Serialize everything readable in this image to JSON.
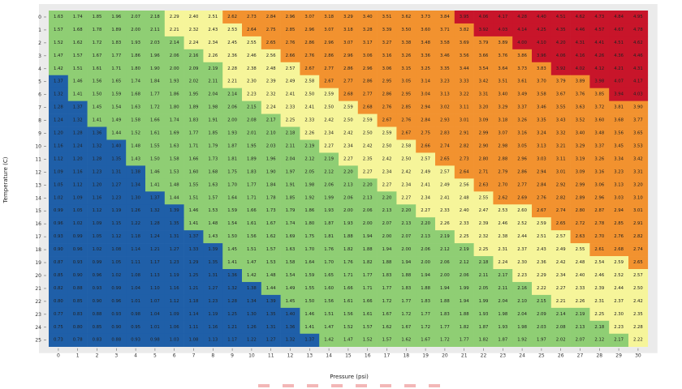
{
  "chart_data": {
    "type": "heatmap",
    "xlabel": "Pressure (psi)",
    "ylabel": "Temperature (C)",
    "x": [
      0,
      1,
      2,
      3,
      4,
      5,
      6,
      7,
      8,
      9,
      10,
      11,
      12,
      13,
      14,
      15,
      16,
      17,
      18,
      19,
      20,
      21,
      22,
      23,
      24,
      25,
      26,
      27,
      28,
      29,
      30
    ],
    "y": [
      0,
      1,
      2,
      3,
      4,
      5,
      6,
      7,
      8,
      9,
      10,
      11,
      12,
      13,
      14,
      15,
      16,
      17,
      18,
      19,
      20,
      21,
      22,
      23,
      24,
      25
    ],
    "grid": true,
    "color_bins": [
      {
        "max": 1.4,
        "color": "#1f5fa8"
      },
      {
        "max": 2.2,
        "color": "#8fce74"
      },
      {
        "max": 2.6,
        "color": "#f6f59a"
      },
      {
        "max": 3.9,
        "color": "#f2922f"
      },
      {
        "max": 99,
        "color": "#c8152a"
      }
    ],
    "legend_swatches": [
      "#f3b7b7",
      "#f3b7b7",
      "#f3b7b7",
      "#f3b7b7",
      "#f3b7b7",
      "#f3b7b7",
      "#f3b7b7",
      "#f3b7b7"
    ],
    "values": [
      [
        1.63,
        1.74,
        1.85,
        1.96,
        2.07,
        2.18,
        2.29,
        2.4,
        2.51,
        2.62,
        2.73,
        2.84,
        2.96,
        3.07,
        3.18,
        3.29,
        3.4,
        3.51,
        3.62,
        3.73,
        3.84,
        3.95,
        4.06,
        4.17,
        4.28,
        4.4,
        4.51,
        4.62,
        4.73,
        4.84,
        4.95
      ],
      [
        1.57,
        1.68,
        1.78,
        1.89,
        2.0,
        2.11,
        2.21,
        2.32,
        2.43,
        2.53,
        2.64,
        2.75,
        2.85,
        2.96,
        3.07,
        3.18,
        3.28,
        3.39,
        3.5,
        3.6,
        3.71,
        3.82,
        3.92,
        4.03,
        4.14,
        4.25,
        4.35,
        4.46,
        4.57,
        4.67,
        4.78
      ],
      [
        1.52,
        1.62,
        1.72,
        1.83,
        1.93,
        2.03,
        2.14,
        2.24,
        2.34,
        2.45,
        2.55,
        2.65,
        2.76,
        2.86,
        2.96,
        3.07,
        3.17,
        3.27,
        3.38,
        3.48,
        3.58,
        3.69,
        3.79,
        3.89,
        4.0,
        4.1,
        4.2,
        4.31,
        4.41,
        4.51,
        4.62
      ],
      [
        1.47,
        1.57,
        1.67,
        1.77,
        1.86,
        1.96,
        2.06,
        2.16,
        2.26,
        2.36,
        2.46,
        2.56,
        2.66,
        2.76,
        2.86,
        2.96,
        3.06,
        3.16,
        3.26,
        3.36,
        3.46,
        3.56,
        3.66,
        3.76,
        3.86,
        3.96,
        4.06,
        4.16,
        4.26,
        4.36,
        4.46
      ],
      [
        1.42,
        1.51,
        1.61,
        1.71,
        1.8,
        1.9,
        2.0,
        2.09,
        2.19,
        2.28,
        2.38,
        2.48,
        2.57,
        2.67,
        2.77,
        2.86,
        2.96,
        3.06,
        3.15,
        3.25,
        3.35,
        3.44,
        3.54,
        3.64,
        3.73,
        3.83,
        3.92,
        4.02,
        4.12,
        4.21,
        4.31
      ],
      [
        1.37,
        1.46,
        1.56,
        1.65,
        1.74,
        1.84,
        1.93,
        2.02,
        2.11,
        2.21,
        2.3,
        2.39,
        2.49,
        2.58,
        2.67,
        2.77,
        2.86,
        2.95,
        3.05,
        3.14,
        3.23,
        3.33,
        3.42,
        3.51,
        3.61,
        3.7,
        3.79,
        3.89,
        3.98,
        4.07,
        4.17
      ],
      [
        1.32,
        1.41,
        1.5,
        1.59,
        1.68,
        1.77,
        1.86,
        1.95,
        2.04,
        2.14,
        2.23,
        2.32,
        2.41,
        2.5,
        2.59,
        2.68,
        2.77,
        2.86,
        2.95,
        3.04,
        3.13,
        3.22,
        3.31,
        3.4,
        3.49,
        3.58,
        3.67,
        3.76,
        3.85,
        3.94,
        4.03
      ],
      [
        1.28,
        1.37,
        1.45,
        1.54,
        1.63,
        1.72,
        1.8,
        1.89,
        1.98,
        2.06,
        2.15,
        2.24,
        2.33,
        2.41,
        2.5,
        2.59,
        2.68,
        2.76,
        2.85,
        2.94,
        3.02,
        3.11,
        3.2,
        3.29,
        3.37,
        3.46,
        3.55,
        3.63,
        3.72,
        3.81,
        3.9
      ],
      [
        1.24,
        1.32,
        1.41,
        1.49,
        1.58,
        1.66,
        1.74,
        1.83,
        1.91,
        2.0,
        2.08,
        2.17,
        2.25,
        2.33,
        2.42,
        2.5,
        2.59,
        2.67,
        2.76,
        2.84,
        2.93,
        3.01,
        3.09,
        3.18,
        3.26,
        3.35,
        3.43,
        3.52,
        3.6,
        3.68,
        3.77
      ],
      [
        1.2,
        1.28,
        1.36,
        1.44,
        1.52,
        1.61,
        1.69,
        1.77,
        1.85,
        1.93,
        2.01,
        2.1,
        2.18,
        2.26,
        2.34,
        2.42,
        2.5,
        2.59,
        2.67,
        2.75,
        2.83,
        2.91,
        2.99,
        3.07,
        3.16,
        3.24,
        3.32,
        3.4,
        3.48,
        3.56,
        3.65
      ],
      [
        1.16,
        1.24,
        1.32,
        1.4,
        1.48,
        1.55,
        1.63,
        1.71,
        1.79,
        1.87,
        1.95,
        2.03,
        2.11,
        2.19,
        2.27,
        2.34,
        2.42,
        2.5,
        2.58,
        2.66,
        2.74,
        2.82,
        2.9,
        2.98,
        3.05,
        3.13,
        3.21,
        3.29,
        3.37,
        3.45,
        3.53
      ],
      [
        1.12,
        1.2,
        1.28,
        1.35,
        1.43,
        1.5,
        1.58,
        1.66,
        1.73,
        1.81,
        1.89,
        1.96,
        2.04,
        2.12,
        2.19,
        2.27,
        2.35,
        2.42,
        2.5,
        2.57,
        2.65,
        2.73,
        2.8,
        2.88,
        2.96,
        3.03,
        3.11,
        3.19,
        3.26,
        3.34,
        3.42
      ],
      [
        1.09,
        1.16,
        1.23,
        1.31,
        1.38,
        1.46,
        1.53,
        1.6,
        1.68,
        1.75,
        1.83,
        1.9,
        1.97,
        2.05,
        2.12,
        2.2,
        2.27,
        2.34,
        2.42,
        2.49,
        2.57,
        2.64,
        2.71,
        2.79,
        2.86,
        2.94,
        3.01,
        3.09,
        3.16,
        3.23,
        3.31
      ],
      [
        1.05,
        1.12,
        1.2,
        1.27,
        1.34,
        1.41,
        1.48,
        1.55,
        1.63,
        1.7,
        1.77,
        1.84,
        1.91,
        1.98,
        2.06,
        2.13,
        2.2,
        2.27,
        2.34,
        2.41,
        2.49,
        2.56,
        2.63,
        2.7,
        2.77,
        2.84,
        2.92,
        2.99,
        3.06,
        3.13,
        3.2
      ],
      [
        1.02,
        1.09,
        1.16,
        1.23,
        1.3,
        1.37,
        1.44,
        1.51,
        1.57,
        1.64,
        1.71,
        1.78,
        1.85,
        1.92,
        1.99,
        2.06,
        2.13,
        2.2,
        2.27,
        2.34,
        2.41,
        2.48,
        2.55,
        2.62,
        2.69,
        2.76,
        2.82,
        2.89,
        2.96,
        3.03,
        3.1
      ],
      [
        0.99,
        1.05,
        1.12,
        1.19,
        1.26,
        1.32,
        1.39,
        1.46,
        1.53,
        1.59,
        1.66,
        1.73,
        1.79,
        1.86,
        1.93,
        2.0,
        2.06,
        2.13,
        2.2,
        2.27,
        2.33,
        2.4,
        2.47,
        2.53,
        2.6,
        2.67,
        2.74,
        2.8,
        2.87,
        2.94,
        3.01
      ],
      [
        0.96,
        1.02,
        1.09,
        1.15,
        1.22,
        1.28,
        1.35,
        1.41,
        1.48,
        1.54,
        1.61,
        1.67,
        1.74,
        1.8,
        1.87,
        1.93,
        2.0,
        2.07,
        2.13,
        2.2,
        2.26,
        2.33,
        2.39,
        2.46,
        2.52,
        2.59,
        2.65,
        2.72,
        2.78,
        2.85,
        2.91
      ],
      [
        0.93,
        0.99,
        1.05,
        1.12,
        1.18,
        1.24,
        1.31,
        1.37,
        1.43,
        1.5,
        1.56,
        1.62,
        1.69,
        1.75,
        1.81,
        1.88,
        1.94,
        2.0,
        2.07,
        2.13,
        2.19,
        2.25,
        2.32,
        2.38,
        2.44,
        2.51,
        2.57,
        2.63,
        2.7,
        2.76,
        2.82
      ],
      [
        0.9,
        0.96,
        1.02,
        1.08,
        1.14,
        1.21,
        1.27,
        1.33,
        1.39,
        1.45,
        1.51,
        1.57,
        1.63,
        1.7,
        1.76,
        1.82,
        1.88,
        1.94,
        2.0,
        2.06,
        2.12,
        2.19,
        2.25,
        2.31,
        2.37,
        2.43,
        2.49,
        2.55,
        2.61,
        2.68,
        2.74
      ],
      [
        0.87,
        0.93,
        0.99,
        1.05,
        1.11,
        1.17,
        1.23,
        1.29,
        1.35,
        1.41,
        1.47,
        1.53,
        1.58,
        1.64,
        1.7,
        1.76,
        1.82,
        1.88,
        1.94,
        2.0,
        2.06,
        2.12,
        2.18,
        2.24,
        2.3,
        2.36,
        2.42,
        2.48,
        2.54,
        2.59,
        2.65
      ],
      [
        0.85,
        0.9,
        0.96,
        1.02,
        1.08,
        1.13,
        1.19,
        1.25,
        1.31,
        1.36,
        1.42,
        1.48,
        1.54,
        1.59,
        1.65,
        1.71,
        1.77,
        1.83,
        1.88,
        1.94,
        2.0,
        2.06,
        2.11,
        2.17,
        2.23,
        2.29,
        2.34,
        2.4,
        2.46,
        2.52,
        2.57
      ],
      [
        0.82,
        0.88,
        0.93,
        0.99,
        1.04,
        1.1,
        1.16,
        1.21,
        1.27,
        1.32,
        1.38,
        1.44,
        1.49,
        1.55,
        1.6,
        1.66,
        1.71,
        1.77,
        1.83,
        1.88,
        1.94,
        1.99,
        2.05,
        2.11,
        2.16,
        2.22,
        2.27,
        2.33,
        2.39,
        2.44,
        2.5
      ],
      [
        0.8,
        0.85,
        0.9,
        0.96,
        1.01,
        1.07,
        1.12,
        1.18,
        1.23,
        1.28,
        1.34,
        1.39,
        1.45,
        1.5,
        1.56,
        1.61,
        1.66,
        1.72,
        1.77,
        1.83,
        1.88,
        1.94,
        1.99,
        2.04,
        2.1,
        2.15,
        2.21,
        2.26,
        2.31,
        2.37,
        2.42
      ],
      [
        0.77,
        0.83,
        0.88,
        0.93,
        0.98,
        1.04,
        1.09,
        1.14,
        1.19,
        1.25,
        1.3,
        1.35,
        1.4,
        1.46,
        1.51,
        1.56,
        1.61,
        1.67,
        1.72,
        1.77,
        1.83,
        1.88,
        1.93,
        1.98,
        2.04,
        2.09,
        2.14,
        2.19,
        2.25,
        2.3,
        2.35
      ],
      [
        0.75,
        0.8,
        0.85,
        0.9,
        0.95,
        1.01,
        1.06,
        1.11,
        1.16,
        1.21,
        1.26,
        1.31,
        1.36,
        1.41,
        1.47,
        1.52,
        1.57,
        1.62,
        1.67,
        1.72,
        1.77,
        1.82,
        1.87,
        1.93,
        1.98,
        2.03,
        2.08,
        2.13,
        2.18,
        2.23,
        2.28
      ],
      [
        0.73,
        0.78,
        0.83,
        0.88,
        0.93,
        0.98,
        1.03,
        1.08,
        1.13,
        1.17,
        1.22,
        1.27,
        1.32,
        1.37,
        1.42,
        1.47,
        1.52,
        1.57,
        1.62,
        1.67,
        1.72,
        1.77,
        1.82,
        1.87,
        1.92,
        1.97,
        2.02,
        2.07,
        2.12,
        2.17,
        2.22
      ]
    ]
  }
}
